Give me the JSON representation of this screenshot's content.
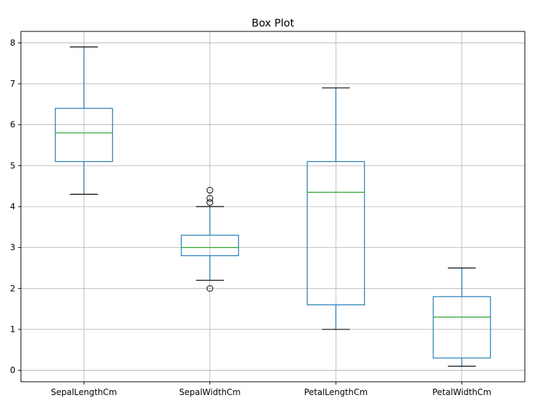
{
  "chart_data": {
    "type": "box",
    "title": "Box Plot",
    "xlabel": "",
    "ylabel": "",
    "ylim": [
      -0.28,
      8.28
    ],
    "yticks": [
      0,
      1,
      2,
      3,
      4,
      5,
      6,
      7,
      8
    ],
    "grid": true,
    "categories": [
      "SepalLengthCm",
      "SepalWidthCm",
      "PetalLengthCm",
      "PetalWidthCm"
    ],
    "boxes": [
      {
        "category": "SepalLengthCm",
        "whisker_low": 4.3,
        "q1": 5.1,
        "median": 5.8,
        "q3": 6.4,
        "whisker_high": 7.9,
        "outliers": []
      },
      {
        "category": "SepalWidthCm",
        "whisker_low": 2.2,
        "q1": 2.8,
        "median": 3.0,
        "q3": 3.3,
        "whisker_high": 4.0,
        "outliers": [
          2.0,
          4.1,
          4.2,
          4.4
        ]
      },
      {
        "category": "PetalLengthCm",
        "whisker_low": 1.0,
        "q1": 1.6,
        "median": 4.35,
        "q3": 5.1,
        "whisker_high": 6.9,
        "outliers": []
      },
      {
        "category": "PetalWidthCm",
        "whisker_low": 0.1,
        "q1": 0.3,
        "median": 1.3,
        "q3": 1.8,
        "whisker_high": 2.5,
        "outliers": []
      }
    ],
    "colors": {
      "box": "#1f77b4",
      "median": "#2ca02c",
      "cap": "#000000",
      "grid": "#b0b0b0",
      "axes": "#000000"
    }
  }
}
